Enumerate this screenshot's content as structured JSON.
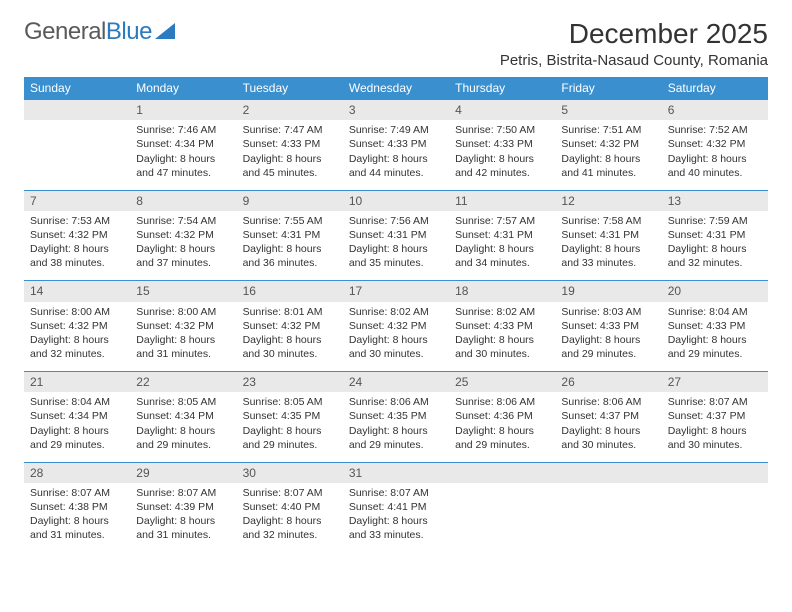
{
  "logo": {
    "text1": "General",
    "text2": "Blue"
  },
  "title": "December 2025",
  "location": "Petris, Bistrita-Nasaud County, Romania",
  "weekdays": [
    "Sunday",
    "Monday",
    "Tuesday",
    "Wednesday",
    "Thursday",
    "Friday",
    "Saturday"
  ],
  "colors": {
    "header_bg": "#3a8fcf",
    "header_fg": "#ffffff",
    "daynum_bg": "#e9e9e9",
    "border": "#3a8fcf"
  },
  "weeks": [
    [
      null,
      {
        "n": "1",
        "sr": "Sunrise: 7:46 AM",
        "ss": "Sunset: 4:34 PM",
        "d1": "Daylight: 8 hours",
        "d2": "and 47 minutes."
      },
      {
        "n": "2",
        "sr": "Sunrise: 7:47 AM",
        "ss": "Sunset: 4:33 PM",
        "d1": "Daylight: 8 hours",
        "d2": "and 45 minutes."
      },
      {
        "n": "3",
        "sr": "Sunrise: 7:49 AM",
        "ss": "Sunset: 4:33 PM",
        "d1": "Daylight: 8 hours",
        "d2": "and 44 minutes."
      },
      {
        "n": "4",
        "sr": "Sunrise: 7:50 AM",
        "ss": "Sunset: 4:33 PM",
        "d1": "Daylight: 8 hours",
        "d2": "and 42 minutes."
      },
      {
        "n": "5",
        "sr": "Sunrise: 7:51 AM",
        "ss": "Sunset: 4:32 PM",
        "d1": "Daylight: 8 hours",
        "d2": "and 41 minutes."
      },
      {
        "n": "6",
        "sr": "Sunrise: 7:52 AM",
        "ss": "Sunset: 4:32 PM",
        "d1": "Daylight: 8 hours",
        "d2": "and 40 minutes."
      }
    ],
    [
      {
        "n": "7",
        "sr": "Sunrise: 7:53 AM",
        "ss": "Sunset: 4:32 PM",
        "d1": "Daylight: 8 hours",
        "d2": "and 38 minutes."
      },
      {
        "n": "8",
        "sr": "Sunrise: 7:54 AM",
        "ss": "Sunset: 4:32 PM",
        "d1": "Daylight: 8 hours",
        "d2": "and 37 minutes."
      },
      {
        "n": "9",
        "sr": "Sunrise: 7:55 AM",
        "ss": "Sunset: 4:31 PM",
        "d1": "Daylight: 8 hours",
        "d2": "and 36 minutes."
      },
      {
        "n": "10",
        "sr": "Sunrise: 7:56 AM",
        "ss": "Sunset: 4:31 PM",
        "d1": "Daylight: 8 hours",
        "d2": "and 35 minutes."
      },
      {
        "n": "11",
        "sr": "Sunrise: 7:57 AM",
        "ss": "Sunset: 4:31 PM",
        "d1": "Daylight: 8 hours",
        "d2": "and 34 minutes."
      },
      {
        "n": "12",
        "sr": "Sunrise: 7:58 AM",
        "ss": "Sunset: 4:31 PM",
        "d1": "Daylight: 8 hours",
        "d2": "and 33 minutes."
      },
      {
        "n": "13",
        "sr": "Sunrise: 7:59 AM",
        "ss": "Sunset: 4:31 PM",
        "d1": "Daylight: 8 hours",
        "d2": "and 32 minutes."
      }
    ],
    [
      {
        "n": "14",
        "sr": "Sunrise: 8:00 AM",
        "ss": "Sunset: 4:32 PM",
        "d1": "Daylight: 8 hours",
        "d2": "and 32 minutes."
      },
      {
        "n": "15",
        "sr": "Sunrise: 8:00 AM",
        "ss": "Sunset: 4:32 PM",
        "d1": "Daylight: 8 hours",
        "d2": "and 31 minutes."
      },
      {
        "n": "16",
        "sr": "Sunrise: 8:01 AM",
        "ss": "Sunset: 4:32 PM",
        "d1": "Daylight: 8 hours",
        "d2": "and 30 minutes."
      },
      {
        "n": "17",
        "sr": "Sunrise: 8:02 AM",
        "ss": "Sunset: 4:32 PM",
        "d1": "Daylight: 8 hours",
        "d2": "and 30 minutes."
      },
      {
        "n": "18",
        "sr": "Sunrise: 8:02 AM",
        "ss": "Sunset: 4:33 PM",
        "d1": "Daylight: 8 hours",
        "d2": "and 30 minutes."
      },
      {
        "n": "19",
        "sr": "Sunrise: 8:03 AM",
        "ss": "Sunset: 4:33 PM",
        "d1": "Daylight: 8 hours",
        "d2": "and 29 minutes."
      },
      {
        "n": "20",
        "sr": "Sunrise: 8:04 AM",
        "ss": "Sunset: 4:33 PM",
        "d1": "Daylight: 8 hours",
        "d2": "and 29 minutes."
      }
    ],
    [
      {
        "n": "21",
        "sr": "Sunrise: 8:04 AM",
        "ss": "Sunset: 4:34 PM",
        "d1": "Daylight: 8 hours",
        "d2": "and 29 minutes."
      },
      {
        "n": "22",
        "sr": "Sunrise: 8:05 AM",
        "ss": "Sunset: 4:34 PM",
        "d1": "Daylight: 8 hours",
        "d2": "and 29 minutes."
      },
      {
        "n": "23",
        "sr": "Sunrise: 8:05 AM",
        "ss": "Sunset: 4:35 PM",
        "d1": "Daylight: 8 hours",
        "d2": "and 29 minutes."
      },
      {
        "n": "24",
        "sr": "Sunrise: 8:06 AM",
        "ss": "Sunset: 4:35 PM",
        "d1": "Daylight: 8 hours",
        "d2": "and 29 minutes."
      },
      {
        "n": "25",
        "sr": "Sunrise: 8:06 AM",
        "ss": "Sunset: 4:36 PM",
        "d1": "Daylight: 8 hours",
        "d2": "and 29 minutes."
      },
      {
        "n": "26",
        "sr": "Sunrise: 8:06 AM",
        "ss": "Sunset: 4:37 PM",
        "d1": "Daylight: 8 hours",
        "d2": "and 30 minutes."
      },
      {
        "n": "27",
        "sr": "Sunrise: 8:07 AM",
        "ss": "Sunset: 4:37 PM",
        "d1": "Daylight: 8 hours",
        "d2": "and 30 minutes."
      }
    ],
    [
      {
        "n": "28",
        "sr": "Sunrise: 8:07 AM",
        "ss": "Sunset: 4:38 PM",
        "d1": "Daylight: 8 hours",
        "d2": "and 31 minutes."
      },
      {
        "n": "29",
        "sr": "Sunrise: 8:07 AM",
        "ss": "Sunset: 4:39 PM",
        "d1": "Daylight: 8 hours",
        "d2": "and 31 minutes."
      },
      {
        "n": "30",
        "sr": "Sunrise: 8:07 AM",
        "ss": "Sunset: 4:40 PM",
        "d1": "Daylight: 8 hours",
        "d2": "and 32 minutes."
      },
      {
        "n": "31",
        "sr": "Sunrise: 8:07 AM",
        "ss": "Sunset: 4:41 PM",
        "d1": "Daylight: 8 hours",
        "d2": "and 33 minutes."
      },
      null,
      null,
      null
    ]
  ]
}
